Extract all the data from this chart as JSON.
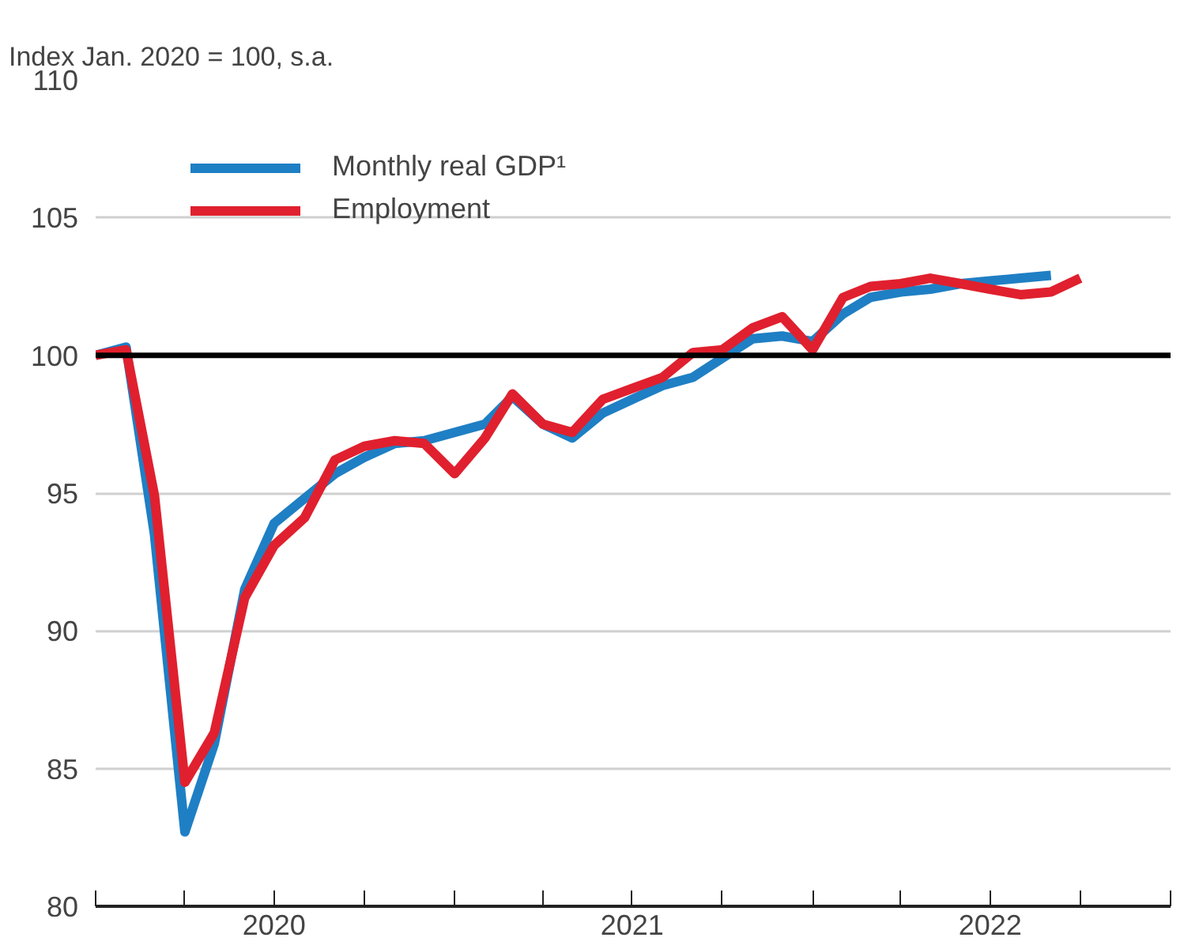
{
  "chart_data": {
    "type": "line",
    "title": "Index Jan. 2020 = 100, s.a.",
    "x": [
      "2020-01",
      "2020-02",
      "2020-03",
      "2020-04",
      "2020-05",
      "2020-06",
      "2020-07",
      "2020-08",
      "2020-09",
      "2020-10",
      "2020-11",
      "2020-12",
      "2021-01",
      "2021-02",
      "2021-03",
      "2021-04",
      "2021-05",
      "2021-06",
      "2021-07",
      "2021-08",
      "2021-09",
      "2021-10",
      "2021-11",
      "2021-12",
      "2022-01",
      "2022-02",
      "2022-03",
      "2022-04",
      "2022-05",
      "2022-06",
      "2022-07",
      "2022-08",
      "2022-09",
      "2022-10"
    ],
    "series": [
      {
        "name": "Monthly real GDP¹",
        "color": "#1f7fc4",
        "values": [
          100.0,
          100.3,
          93.5,
          82.7,
          85.9,
          91.5,
          93.9,
          94.8,
          95.7,
          96.3,
          96.8,
          96.9,
          97.2,
          97.5,
          98.5,
          97.5,
          97.0,
          97.9,
          98.4,
          98.9,
          99.2,
          99.9,
          100.6,
          100.7,
          100.5,
          101.5,
          102.1,
          102.3,
          102.4,
          102.6,
          102.7,
          102.8,
          102.9,
          null
        ]
      },
      {
        "name": "Employment",
        "color": "#e0202e",
        "values": [
          100.0,
          100.2,
          94.9,
          84.5,
          86.3,
          91.2,
          93.1,
          94.1,
          96.2,
          96.7,
          96.9,
          96.8,
          95.7,
          97.0,
          98.6,
          97.5,
          97.2,
          98.4,
          98.8,
          99.2,
          100.1,
          100.2,
          101.0,
          101.4,
          100.2,
          102.1,
          102.5,
          102.6,
          102.8,
          102.6,
          102.4,
          102.2,
          102.3,
          102.8
        ]
      }
    ],
    "xlim": [
      "2020-01",
      "2023-01"
    ],
    "xticks": [
      {
        "value": "2020-01",
        "label": null
      },
      {
        "value": "2020-04",
        "label": null
      },
      {
        "value": "2020-07",
        "label": "2020"
      },
      {
        "value": "2020-10",
        "label": null
      },
      {
        "value": "2021-01",
        "label": null
      },
      {
        "value": "2021-04",
        "label": null
      },
      {
        "value": "2021-07",
        "label": "2021"
      },
      {
        "value": "2021-10",
        "label": null
      },
      {
        "value": "2022-01",
        "label": null
      },
      {
        "value": "2022-04",
        "label": null
      },
      {
        "value": "2022-07",
        "label": "2022"
      },
      {
        "value": "2022-10",
        "label": null
      },
      {
        "value": "2023-01",
        "label": null
      }
    ],
    "ylim": [
      80,
      110
    ],
    "yticks": [
      80,
      85,
      90,
      95,
      100,
      105,
      110
    ],
    "ref_lines": [
      {
        "axis": "y",
        "value": 100,
        "label": null,
        "color": "#000000"
      }
    ],
    "grid": "y",
    "legend": "top left",
    "marker": "none",
    "line_style": "solid"
  }
}
